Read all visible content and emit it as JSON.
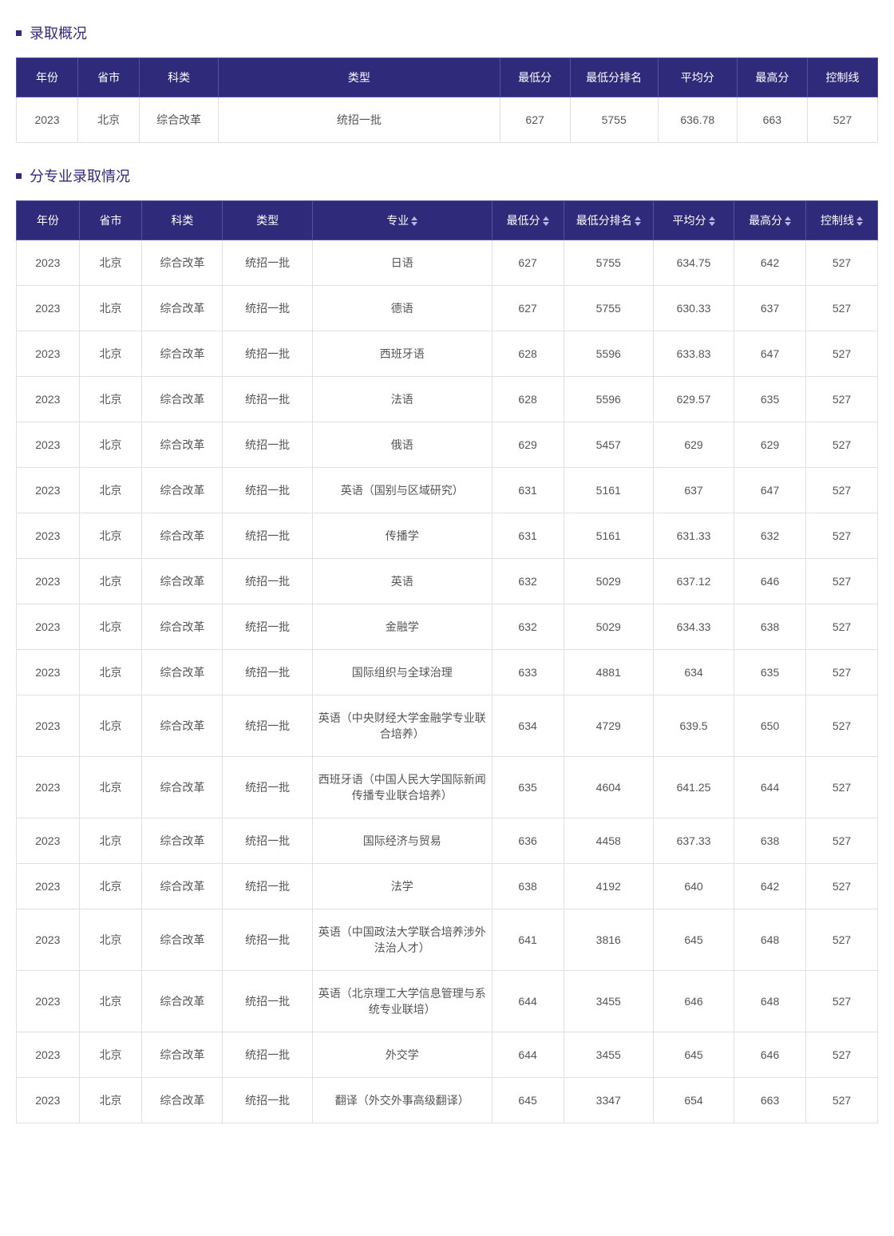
{
  "colors": {
    "header_bg": "#2f2a7a",
    "header_border": "#5550a0",
    "header_text": "#ffffff",
    "cell_border": "#e0e0e0",
    "cell_text": "#555555",
    "bullet": "#2f2a7a",
    "title_text": "#2f2a7a",
    "sort_icon": "#b8b5e0"
  },
  "section1": {
    "title": "录取概况",
    "columns": [
      "年份",
      "省市",
      "科类",
      "类型",
      "最低分",
      "最低分排名",
      "平均分",
      "最高分",
      "控制线"
    ],
    "row": {
      "year": "2023",
      "prov": "北京",
      "cat": "综合改革",
      "type": "统招一批",
      "min": "627",
      "rank": "5755",
      "avg": "636.78",
      "max": "663",
      "ctrl": "527"
    }
  },
  "section2": {
    "title": "分专业录取情况",
    "columns": [
      "年份",
      "省市",
      "科类",
      "类型",
      "专业",
      "最低分",
      "最低分排名",
      "平均分",
      "最高分",
      "控制线"
    ],
    "sortable": [
      false,
      false,
      false,
      false,
      true,
      true,
      true,
      true,
      true,
      true
    ],
    "rows": [
      {
        "year": "2023",
        "prov": "北京",
        "cat": "综合改革",
        "type": "统招一批",
        "major": "日语",
        "min": "627",
        "rank": "5755",
        "avg": "634.75",
        "max": "642",
        "ctrl": "527"
      },
      {
        "year": "2023",
        "prov": "北京",
        "cat": "综合改革",
        "type": "统招一批",
        "major": "德语",
        "min": "627",
        "rank": "5755",
        "avg": "630.33",
        "max": "637",
        "ctrl": "527"
      },
      {
        "year": "2023",
        "prov": "北京",
        "cat": "综合改革",
        "type": "统招一批",
        "major": "西班牙语",
        "min": "628",
        "rank": "5596",
        "avg": "633.83",
        "max": "647",
        "ctrl": "527"
      },
      {
        "year": "2023",
        "prov": "北京",
        "cat": "综合改革",
        "type": "统招一批",
        "major": "法语",
        "min": "628",
        "rank": "5596",
        "avg": "629.57",
        "max": "635",
        "ctrl": "527"
      },
      {
        "year": "2023",
        "prov": "北京",
        "cat": "综合改革",
        "type": "统招一批",
        "major": "俄语",
        "min": "629",
        "rank": "5457",
        "avg": "629",
        "max": "629",
        "ctrl": "527"
      },
      {
        "year": "2023",
        "prov": "北京",
        "cat": "综合改革",
        "type": "统招一批",
        "major": "英语（国别与区域研究）",
        "min": "631",
        "rank": "5161",
        "avg": "637",
        "max": "647",
        "ctrl": "527"
      },
      {
        "year": "2023",
        "prov": "北京",
        "cat": "综合改革",
        "type": "统招一批",
        "major": "传播学",
        "min": "631",
        "rank": "5161",
        "avg": "631.33",
        "max": "632",
        "ctrl": "527"
      },
      {
        "year": "2023",
        "prov": "北京",
        "cat": "综合改革",
        "type": "统招一批",
        "major": "英语",
        "min": "632",
        "rank": "5029",
        "avg": "637.12",
        "max": "646",
        "ctrl": "527"
      },
      {
        "year": "2023",
        "prov": "北京",
        "cat": "综合改革",
        "type": "统招一批",
        "major": "金融学",
        "min": "632",
        "rank": "5029",
        "avg": "634.33",
        "max": "638",
        "ctrl": "527"
      },
      {
        "year": "2023",
        "prov": "北京",
        "cat": "综合改革",
        "type": "统招一批",
        "major": "国际组织与全球治理",
        "min": "633",
        "rank": "4881",
        "avg": "634",
        "max": "635",
        "ctrl": "527"
      },
      {
        "year": "2023",
        "prov": "北京",
        "cat": "综合改革",
        "type": "统招一批",
        "major": "英语（中央财经大学金融学专业联合培养）",
        "min": "634",
        "rank": "4729",
        "avg": "639.5",
        "max": "650",
        "ctrl": "527"
      },
      {
        "year": "2023",
        "prov": "北京",
        "cat": "综合改革",
        "type": "统招一批",
        "major": "西班牙语（中国人民大学国际新闻传播专业联合培养）",
        "min": "635",
        "rank": "4604",
        "avg": "641.25",
        "max": "644",
        "ctrl": "527"
      },
      {
        "year": "2023",
        "prov": "北京",
        "cat": "综合改革",
        "type": "统招一批",
        "major": "国际经济与贸易",
        "min": "636",
        "rank": "4458",
        "avg": "637.33",
        "max": "638",
        "ctrl": "527"
      },
      {
        "year": "2023",
        "prov": "北京",
        "cat": "综合改革",
        "type": "统招一批",
        "major": "法学",
        "min": "638",
        "rank": "4192",
        "avg": "640",
        "max": "642",
        "ctrl": "527"
      },
      {
        "year": "2023",
        "prov": "北京",
        "cat": "综合改革",
        "type": "统招一批",
        "major": "英语（中国政法大学联合培养涉外法治人才）",
        "min": "641",
        "rank": "3816",
        "avg": "645",
        "max": "648",
        "ctrl": "527"
      },
      {
        "year": "2023",
        "prov": "北京",
        "cat": "综合改革",
        "type": "统招一批",
        "major": "英语（北京理工大学信息管理与系统专业联培）",
        "min": "644",
        "rank": "3455",
        "avg": "646",
        "max": "648",
        "ctrl": "527"
      },
      {
        "year": "2023",
        "prov": "北京",
        "cat": "综合改革",
        "type": "统招一批",
        "major": "外交学",
        "min": "644",
        "rank": "3455",
        "avg": "645",
        "max": "646",
        "ctrl": "527"
      },
      {
        "year": "2023",
        "prov": "北京",
        "cat": "综合改革",
        "type": "统招一批",
        "major": "翻译（外交外事高级翻译）",
        "min": "645",
        "rank": "3347",
        "avg": "654",
        "max": "663",
        "ctrl": "527"
      }
    ]
  }
}
